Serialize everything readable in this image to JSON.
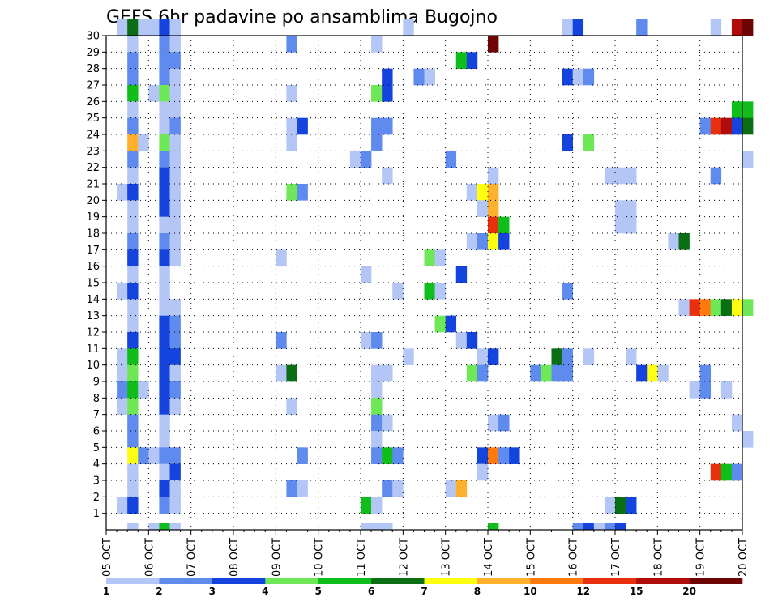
{
  "chart_data": {
    "type": "heatmap",
    "title": "GEFS 6hr padavine po ansamblima Bugojno",
    "xlabel": "",
    "ylabel": "",
    "x_tick_labels": [
      "05 OCT",
      "06 OCT",
      "07 OCT",
      "08 OCT",
      "09 OCT",
      "10 OCT",
      "11 OCT",
      "12 OCT",
      "13 OCT",
      "14 OCT",
      "15 OCT",
      "16 OCT",
      "17 OCT",
      "18 OCT",
      "19 OCT",
      "20 OCT"
    ],
    "y_tick_labels": [
      "1",
      "2",
      "3",
      "4",
      "5",
      "6",
      "7",
      "8",
      "9",
      "10",
      "11",
      "12",
      "13",
      "14",
      "15",
      "16",
      "17",
      "18",
      "19",
      "20",
      "21",
      "22",
      "23",
      "24",
      "25",
      "26",
      "27",
      "28",
      "29",
      "30"
    ],
    "x_range_days": [
      0,
      15
    ],
    "y_range": [
      0,
      30
    ],
    "time_step_hours": 6,
    "grid": "dotted",
    "colorbar": {
      "placement": "bottom",
      "labels": [
        "1",
        "2",
        "3",
        "4",
        "5",
        "6",
        "7",
        "8",
        "10",
        "12",
        "15",
        "20"
      ],
      "colors": [
        "#b3c6f5",
        "#5f8aee",
        "#1444dd",
        "#6ee857",
        "#0fbe1a",
        "#096e14",
        "#ffff10",
        "#ffb12e",
        "#ff7a0d",
        "#e8300f",
        "#b00c0c",
        "#6e0505"
      ]
    },
    "cells_note": "each cell = [member(1-30, 0=analysis row), time_step index from 05 OCT 00Z, color level 1-12]",
    "cells": [
      [
        30,
        1,
        1
      ],
      [
        30,
        2,
        6
      ],
      [
        30,
        3,
        1
      ],
      [
        30,
        4,
        1
      ],
      [
        30,
        5,
        3
      ],
      [
        30,
        6,
        1
      ],
      [
        30,
        28,
        1
      ],
      [
        30,
        43,
        1
      ],
      [
        30,
        44,
        3
      ],
      [
        30,
        50,
        2
      ],
      [
        30,
        57,
        1
      ],
      [
        30,
        59,
        11
      ],
      [
        30,
        60,
        12
      ],
      [
        29,
        2,
        1
      ],
      [
        29,
        5,
        2
      ],
      [
        29,
        6,
        1
      ],
      [
        29,
        17,
        2
      ],
      [
        29,
        25,
        1
      ],
      [
        29,
        36,
        12
      ],
      [
        28,
        2,
        2
      ],
      [
        28,
        5,
        2
      ],
      [
        28,
        6,
        2
      ],
      [
        28,
        33,
        5
      ],
      [
        28,
        34,
        3
      ],
      [
        27,
        2,
        2
      ],
      [
        27,
        5,
        2
      ],
      [
        27,
        6,
        1
      ],
      [
        27,
        26,
        3
      ],
      [
        27,
        29,
        2
      ],
      [
        27,
        30,
        1
      ],
      [
        27,
        43,
        3
      ],
      [
        27,
        44,
        1
      ],
      [
        27,
        45,
        2
      ],
      [
        26,
        2,
        5
      ],
      [
        26,
        4,
        1
      ],
      [
        26,
        5,
        4
      ],
      [
        26,
        6,
        1
      ],
      [
        26,
        17,
        1
      ],
      [
        26,
        25,
        4
      ],
      [
        26,
        26,
        3
      ],
      [
        25,
        2,
        1
      ],
      [
        25,
        5,
        1
      ],
      [
        25,
        6,
        1
      ],
      [
        25,
        59,
        5
      ],
      [
        25,
        60,
        5
      ],
      [
        24,
        2,
        2
      ],
      [
        24,
        5,
        1
      ],
      [
        24,
        6,
        2
      ],
      [
        24,
        17,
        1
      ],
      [
        24,
        18,
        3
      ],
      [
        24,
        25,
        2
      ],
      [
        24,
        26,
        2
      ],
      [
        24,
        56,
        2
      ],
      [
        24,
        57,
        10
      ],
      [
        24,
        58,
        11
      ],
      [
        24,
        59,
        3
      ],
      [
        24,
        60,
        6
      ],
      [
        23,
        2,
        8
      ],
      [
        23,
        3,
        1
      ],
      [
        23,
        5,
        4
      ],
      [
        23,
        6,
        1
      ],
      [
        23,
        17,
        1
      ],
      [
        23,
        25,
        2
      ],
      [
        23,
        43,
        3
      ],
      [
        23,
        45,
        4
      ],
      [
        22,
        2,
        2
      ],
      [
        22,
        5,
        2
      ],
      [
        22,
        6,
        1
      ],
      [
        22,
        23,
        1
      ],
      [
        22,
        24,
        2
      ],
      [
        22,
        32,
        2
      ],
      [
        22,
        60,
        1
      ],
      [
        21,
        2,
        1
      ],
      [
        21,
        5,
        3
      ],
      [
        21,
        6,
        1
      ],
      [
        21,
        26,
        1
      ],
      [
        21,
        36,
        1
      ],
      [
        21,
        47,
        1
      ],
      [
        21,
        48,
        1
      ],
      [
        21,
        49,
        1
      ],
      [
        21,
        57,
        2
      ],
      [
        20,
        1,
        1
      ],
      [
        20,
        2,
        3
      ],
      [
        20,
        5,
        3
      ],
      [
        20,
        6,
        1
      ],
      [
        20,
        17,
        4
      ],
      [
        20,
        18,
        2
      ],
      [
        20,
        34,
        1
      ],
      [
        20,
        35,
        7
      ],
      [
        20,
        36,
        8
      ],
      [
        19,
        2,
        1
      ],
      [
        19,
        5,
        3
      ],
      [
        19,
        6,
        1
      ],
      [
        19,
        35,
        1
      ],
      [
        19,
        36,
        8
      ],
      [
        19,
        48,
        1
      ],
      [
        19,
        49,
        1
      ],
      [
        18,
        2,
        1
      ],
      [
        18,
        5,
        1
      ],
      [
        18,
        6,
        1
      ],
      [
        18,
        36,
        10
      ],
      [
        18,
        37,
        5
      ],
      [
        18,
        48,
        1
      ],
      [
        18,
        49,
        1
      ],
      [
        17,
        2,
        2
      ],
      [
        17,
        5,
        2
      ],
      [
        17,
        6,
        1
      ],
      [
        17,
        34,
        1
      ],
      [
        17,
        35,
        2
      ],
      [
        17,
        36,
        7
      ],
      [
        17,
        37,
        3
      ],
      [
        17,
        53,
        1
      ],
      [
        17,
        54,
        6
      ],
      [
        16,
        2,
        3
      ],
      [
        16,
        5,
        3
      ],
      [
        16,
        6,
        1
      ],
      [
        16,
        16,
        1
      ],
      [
        16,
        30,
        4
      ],
      [
        16,
        31,
        1
      ],
      [
        15,
        2,
        1
      ],
      [
        15,
        5,
        1
      ],
      [
        15,
        24,
        1
      ],
      [
        15,
        33,
        3
      ],
      [
        14,
        1,
        1
      ],
      [
        14,
        2,
        3
      ],
      [
        14,
        5,
        1
      ],
      [
        14,
        27,
        1
      ],
      [
        14,
        30,
        5
      ],
      [
        14,
        31,
        1
      ],
      [
        14,
        43,
        2
      ],
      [
        13,
        2,
        1
      ],
      [
        13,
        5,
        1
      ],
      [
        13,
        6,
        1
      ],
      [
        13,
        54,
        1
      ],
      [
        13,
        55,
        10
      ],
      [
        13,
        56,
        9
      ],
      [
        13,
        57,
        4
      ],
      [
        13,
        58,
        6
      ],
      [
        13,
        59,
        7
      ],
      [
        13,
        60,
        4
      ],
      [
        12,
        2,
        1
      ],
      [
        12,
        5,
        3
      ],
      [
        12,
        6,
        2
      ],
      [
        12,
        31,
        4
      ],
      [
        12,
        32,
        3
      ],
      [
        11,
        2,
        3
      ],
      [
        11,
        5,
        3
      ],
      [
        11,
        6,
        2
      ],
      [
        11,
        16,
        2
      ],
      [
        11,
        24,
        1
      ],
      [
        11,
        25,
        2
      ],
      [
        11,
        33,
        1
      ],
      [
        11,
        34,
        3
      ],
      [
        10,
        1,
        1
      ],
      [
        10,
        2,
        5
      ],
      [
        10,
        5,
        3
      ],
      [
        10,
        6,
        3
      ],
      [
        10,
        28,
        1
      ],
      [
        10,
        35,
        1
      ],
      [
        10,
        36,
        3
      ],
      [
        10,
        42,
        6
      ],
      [
        10,
        43,
        2
      ],
      [
        10,
        45,
        1
      ],
      [
        10,
        49,
        1
      ],
      [
        9,
        1,
        1
      ],
      [
        9,
        2,
        4
      ],
      [
        9,
        5,
        3
      ],
      [
        9,
        6,
        1
      ],
      [
        9,
        16,
        1
      ],
      [
        9,
        17,
        6
      ],
      [
        9,
        25,
        1
      ],
      [
        9,
        26,
        1
      ],
      [
        9,
        34,
        4
      ],
      [
        9,
        35,
        2
      ],
      [
        9,
        40,
        2
      ],
      [
        9,
        41,
        4
      ],
      [
        9,
        42,
        2
      ],
      [
        9,
        43,
        2
      ],
      [
        9,
        50,
        3
      ],
      [
        9,
        51,
        7
      ],
      [
        9,
        52,
        1
      ],
      [
        9,
        56,
        2
      ],
      [
        8,
        1,
        2
      ],
      [
        8,
        2,
        5
      ],
      [
        8,
        3,
        1
      ],
      [
        8,
        5,
        3
      ],
      [
        8,
        6,
        2
      ],
      [
        8,
        25,
        1
      ],
      [
        8,
        55,
        1
      ],
      [
        8,
        56,
        2
      ],
      [
        8,
        58,
        1
      ],
      [
        7,
        1,
        1
      ],
      [
        7,
        2,
        4
      ],
      [
        7,
        5,
        3
      ],
      [
        7,
        6,
        1
      ],
      [
        7,
        17,
        1
      ],
      [
        7,
        25,
        4
      ],
      [
        6,
        2,
        2
      ],
      [
        6,
        5,
        1
      ],
      [
        6,
        25,
        2
      ],
      [
        6,
        26,
        1
      ],
      [
        6,
        36,
        1
      ],
      [
        6,
        37,
        2
      ],
      [
        6,
        59,
        1
      ],
      [
        5,
        2,
        2
      ],
      [
        5,
        5,
        1
      ],
      [
        5,
        25,
        1
      ],
      [
        5,
        60,
        1
      ],
      [
        4,
        2,
        7
      ],
      [
        4,
        3,
        2
      ],
      [
        4,
        4,
        1
      ],
      [
        4,
        5,
        2
      ],
      [
        4,
        6,
        2
      ],
      [
        4,
        18,
        2
      ],
      [
        4,
        25,
        2
      ],
      [
        4,
        26,
        5
      ],
      [
        4,
        27,
        2
      ],
      [
        4,
        35,
        3
      ],
      [
        4,
        36,
        9
      ],
      [
        4,
        37,
        2
      ],
      [
        4,
        38,
        3
      ],
      [
        3,
        2,
        1
      ],
      [
        3,
        5,
        1
      ],
      [
        3,
        6,
        3
      ],
      [
        3,
        35,
        1
      ],
      [
        3,
        57,
        10
      ],
      [
        3,
        58,
        5
      ],
      [
        3,
        59,
        2
      ],
      [
        2,
        2,
        1
      ],
      [
        2,
        5,
        3
      ],
      [
        2,
        6,
        1
      ],
      [
        2,
        17,
        2
      ],
      [
        2,
        18,
        1
      ],
      [
        2,
        26,
        2
      ],
      [
        2,
        27,
        1
      ],
      [
        2,
        32,
        1
      ],
      [
        2,
        33,
        8
      ],
      [
        1,
        1,
        1
      ],
      [
        1,
        2,
        3
      ],
      [
        1,
        5,
        2
      ],
      [
        1,
        6,
        1
      ],
      [
        1,
        24,
        5
      ],
      [
        1,
        25,
        1
      ],
      [
        1,
        47,
        1
      ],
      [
        1,
        48,
        6
      ],
      [
        1,
        49,
        3
      ],
      [
        0,
        2,
        1
      ],
      [
        0,
        4,
        1
      ],
      [
        0,
        5,
        5
      ],
      [
        0,
        6,
        1
      ],
      [
        0,
        24,
        1
      ],
      [
        0,
        25,
        1
      ],
      [
        0,
        26,
        1
      ],
      [
        0,
        36,
        5
      ],
      [
        0,
        44,
        2
      ],
      [
        0,
        45,
        3
      ],
      [
        0,
        46,
        1
      ],
      [
        0,
        47,
        2
      ],
      [
        0,
        48,
        3
      ]
    ]
  }
}
